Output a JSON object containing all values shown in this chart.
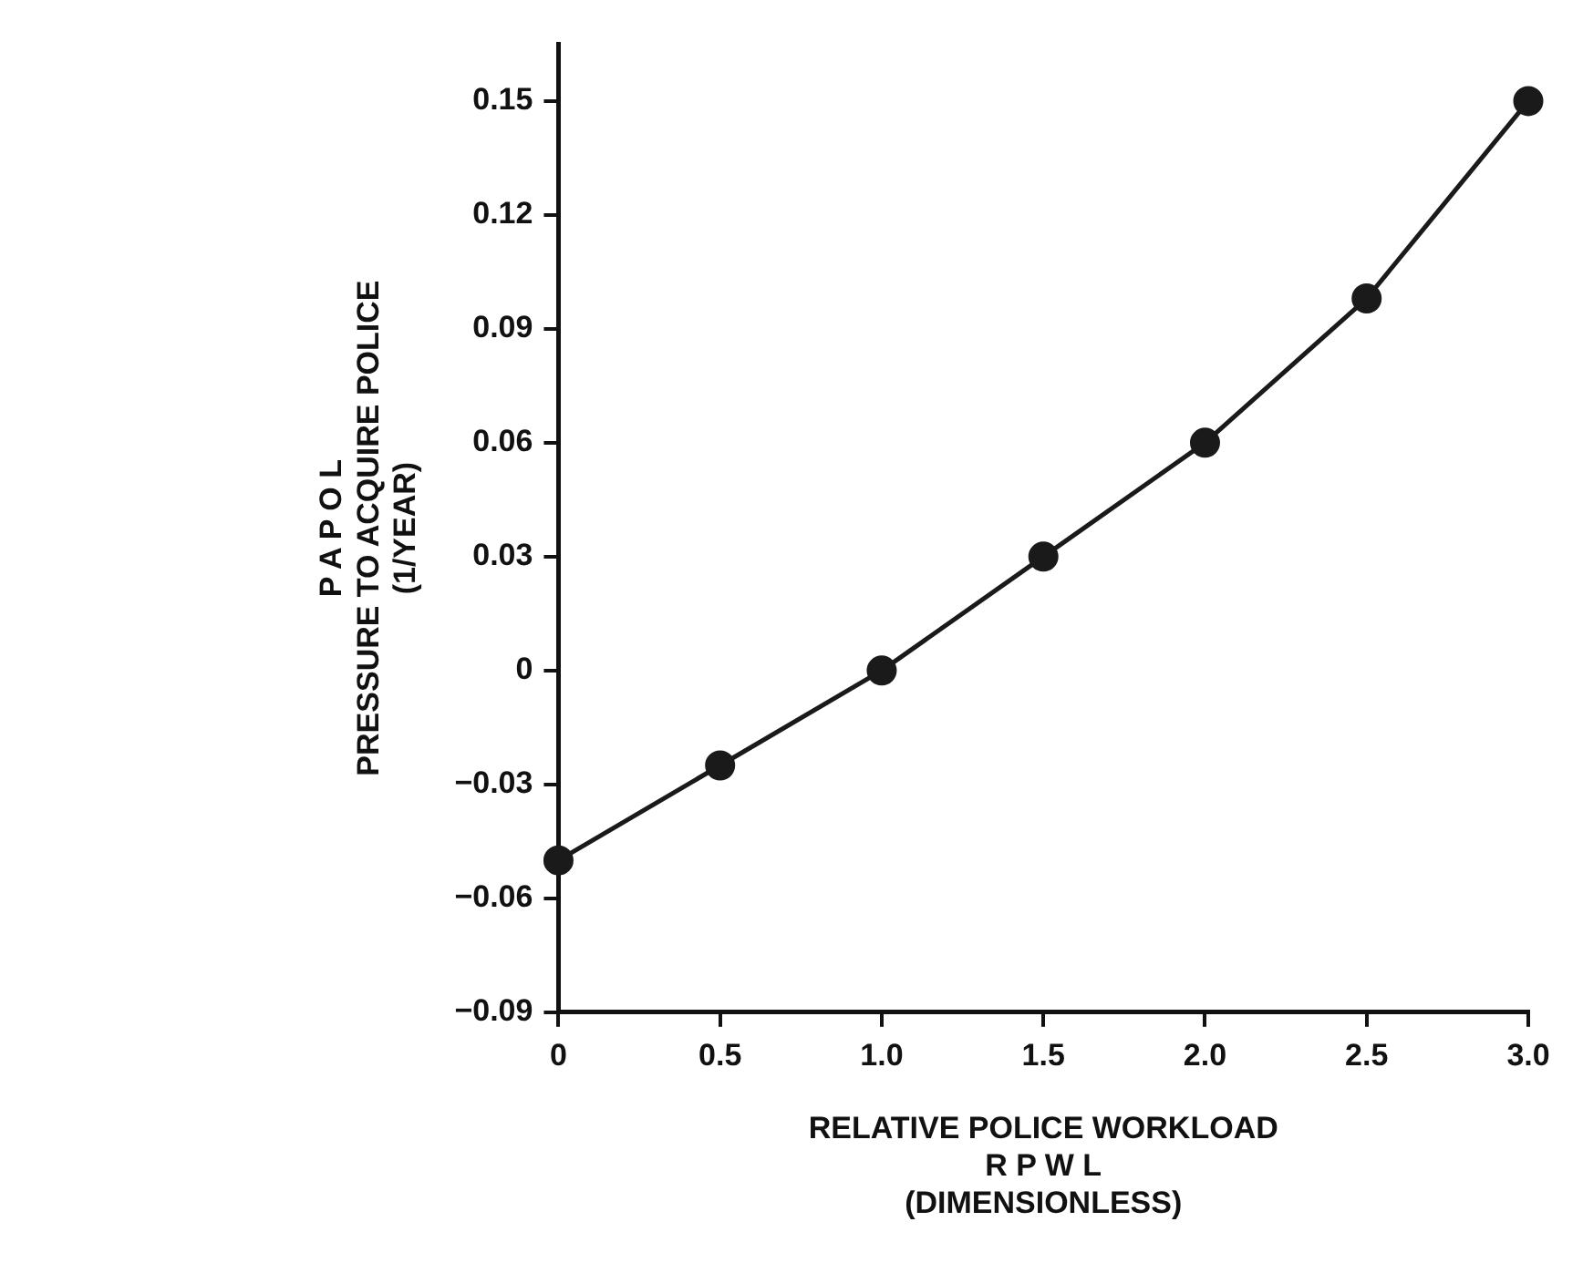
{
  "chart_data": {
    "type": "line",
    "xlabel": "RELATIVE POLICE WORKLOAD\nR P W L\n(DIMENSIONLESS)",
    "ylabel": "P A P O L\nPRESSURE TO ACQUIRE POLICE\n(1/YEAR)",
    "x": [
      0,
      0.5,
      1,
      1.5,
      2,
      2.5,
      3
    ],
    "series": [
      {
        "color": "#1a1a1a",
        "values": [
          -0.05,
          -0.025,
          0,
          0.03,
          0.06,
          0.098,
          0.15
        ]
      }
    ],
    "xlim": [
      0,
      3
    ],
    "ylim": [
      -0.09,
      0.165
    ],
    "xticks": [
      0,
      0.5,
      {
        "value": 1,
        "label": "1.0"
      },
      1.5,
      {
        "value": 2,
        "label": "2.0"
      },
      2.5,
      {
        "value": 3,
        "label": "3.0"
      }
    ],
    "yticks": [
      {
        "value": -0.09,
        "label": "−0.09"
      },
      {
        "value": -0.06,
        "label": "−0.06"
      },
      {
        "value": -0.03,
        "label": "−0.03"
      },
      0,
      0.03,
      0.06,
      0.09,
      0.12,
      0.15
    ],
    "marker": "circle",
    "line_style": "solid",
    "grid": false,
    "legend": false
  }
}
